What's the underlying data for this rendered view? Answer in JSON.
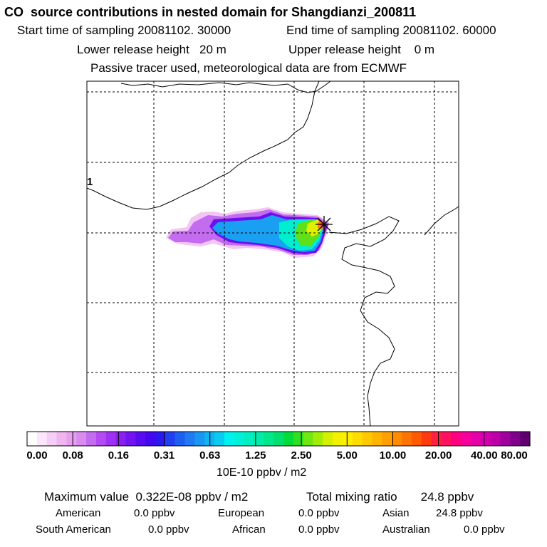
{
  "header": {
    "title": "CO  source contributions in nested domain for Shangdianzi_200811",
    "start_label": "Start time of sampling 20081102. 30000",
    "end_label": "End time of sampling 20081102. 60000",
    "lower_label": "Lower release height   20 m",
    "upper_label": "Upper release height    0 m",
    "tracer_label": "Passive tracer used, meteorological data are from ECMWF"
  },
  "map": {
    "marker_label": "1",
    "receptor": "Shangdianzi"
  },
  "colorbar": {
    "tick_labels": [
      "0.00",
      "0.08",
      "0.16",
      "0.31",
      "0.63",
      "1.25",
      "2.50",
      "5.00",
      "10.00",
      "20.00",
      "40.00",
      "80.00"
    ],
    "units": "10E-10 ppbv / m2",
    "colors": [
      "#ffffff",
      "#fbe6fb",
      "#f5cef5",
      "#efb5ef",
      "#e7a0ef",
      "#d88cef",
      "#c46cf0",
      "#b44af2",
      "#a030f3",
      "#8b1ef2",
      "#7214f0",
      "#5a0cf0",
      "#4408f0",
      "#2a18f0",
      "#2040f0",
      "#1f5ef2",
      "#1f7af3",
      "#1896f2",
      "#10b2f0",
      "#0acbf0",
      "#00f2f0",
      "#00f0d8",
      "#00eec0",
      "#00eca8",
      "#00e88a",
      "#00e070",
      "#00dc3c",
      "#30e020",
      "#70e810",
      "#a0ee08",
      "#d4f000",
      "#f2f200",
      "#ffee00",
      "#ffdc00",
      "#ffc800",
      "#ffb400",
      "#ffa000",
      "#ff8c00",
      "#ff7400",
      "#ff5a00",
      "#ff3a10",
      "#ff2040",
      "#ff1060",
      "#ff0080",
      "#f5009c",
      "#e600a8",
      "#d400b0",
      "#bc00a8",
      "#a0009c",
      "#80008c",
      "#600070"
    ]
  },
  "stats": {
    "max_value": "Maximum value  0.322E-08 ppbv / m2",
    "total_mixing": "Total mixing ratio       24.8 ppbv",
    "american": {
      "name": "American",
      "value": "0.0 ppbv"
    },
    "european": {
      "name": "European",
      "value": "0.0 ppbv"
    },
    "asian": {
      "name": "Asian",
      "value": "24.8 ppbv"
    },
    "south_american": {
      "name": "South American",
      "value": "0.0 ppbv"
    },
    "african": {
      "name": "African",
      "value": "0.0 ppbv"
    },
    "australian": {
      "name": "Australian",
      "value": "0.0 ppbv"
    }
  }
}
